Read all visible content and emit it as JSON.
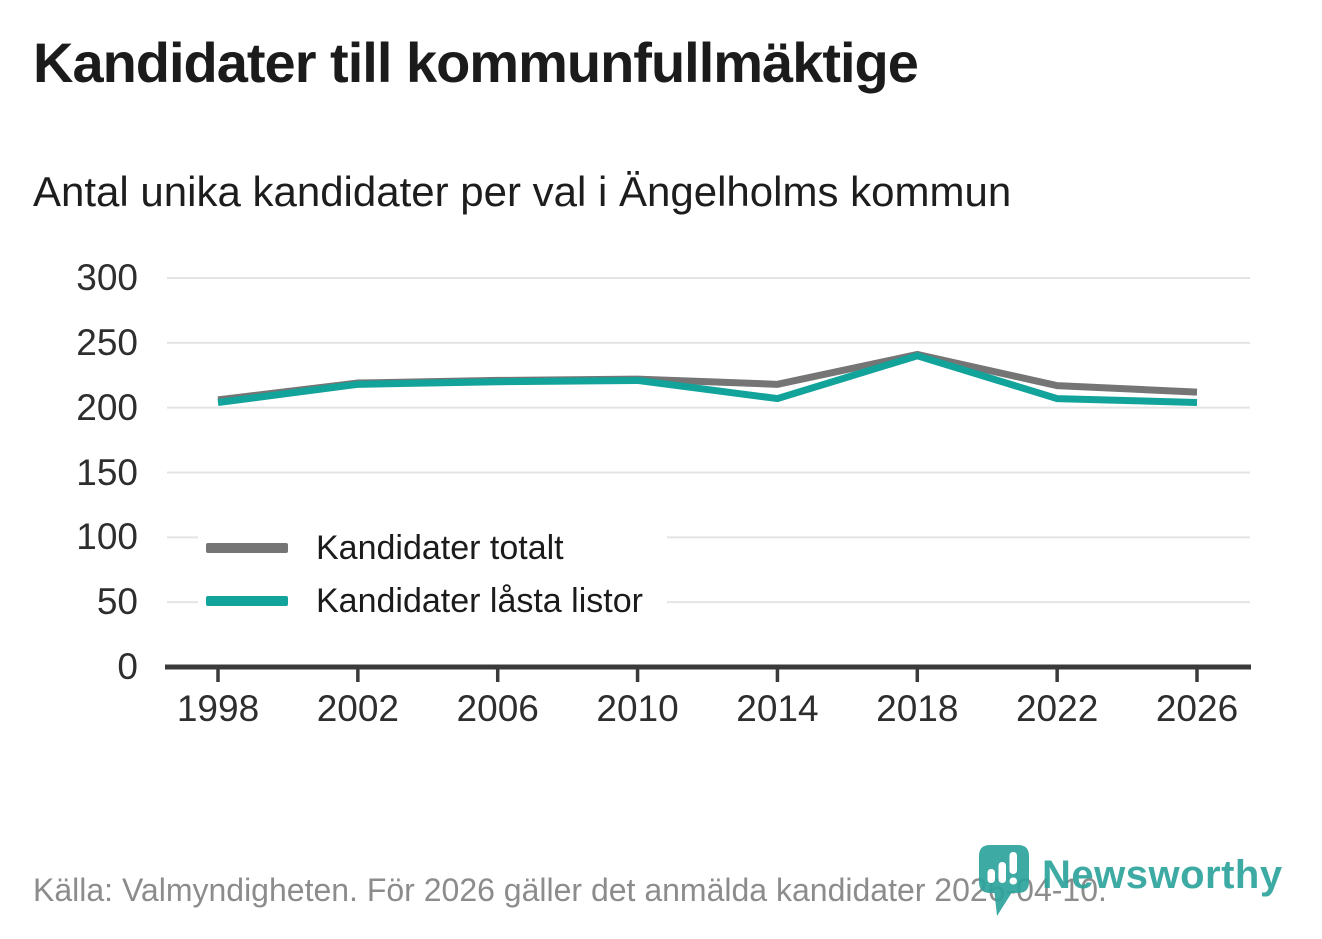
{
  "title": "Kandidater till kommunfullmäktige",
  "subtitle": "Antal unika kandidater per val i Ängelholms kommun",
  "footer": {
    "source": "Källa: Valmyndigheten. För 2026 gäller det anmälda kandidater 2026-04-10.",
    "brand": "Newsworthy"
  },
  "colors": {
    "series_total": "#757575",
    "series_locked": "#12a39b",
    "brand_teal": "#2da49c",
    "grid": "#e4e4e4",
    "axis": "#3a3a3a",
    "axis_text": "#2e2e2e",
    "heading_text": "#1b1b1b",
    "muted_text": "#8c8c8c"
  },
  "chart_data": {
    "type": "line",
    "title": "Kandidater till kommunfullmäktige",
    "subtitle": "Antal unika kandidater per val i Ängelholms kommun",
    "x": [
      1998,
      2002,
      2006,
      2010,
      2014,
      2018,
      2022,
      2026
    ],
    "series": [
      {
        "name": "Kandidater totalt",
        "color": "#757575",
        "values": [
          206,
          219,
          221,
          222,
          218,
          241,
          217,
          212
        ]
      },
      {
        "name": "Kandidater låsta listor",
        "color": "#12a39b",
        "values": [
          204,
          218,
          220,
          221,
          207,
          240,
          207,
          204
        ]
      }
    ],
    "xlabel": "",
    "ylabel": "",
    "ylim": [
      0,
      300
    ],
    "yticks": [
      0,
      50,
      100,
      150,
      200,
      250,
      300
    ],
    "grid": true,
    "legend_position": "inside-left"
  }
}
